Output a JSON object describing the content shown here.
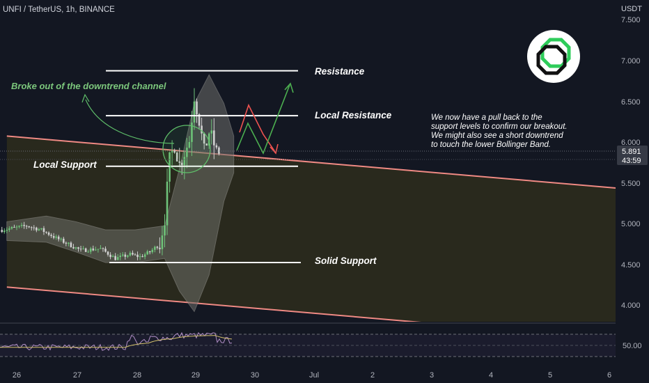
{
  "header": {
    "symbol": "UNFI / TetherUS, 1h, BINANCE"
  },
  "price_axis": {
    "currency": "USDT",
    "last_price": "5.891",
    "countdown": "43:59",
    "ticks": [
      "7.500",
      "7.000",
      "6.500",
      "6.000",
      "5.500",
      "5.000",
      "4.500",
      "4.000"
    ]
  },
  "indicator": {
    "level_label": "50.00"
  },
  "time_axis": {
    "ticks": [
      "26",
      "27",
      "28",
      "29",
      "30",
      "Jul",
      "2",
      "3",
      "4",
      "5",
      "6"
    ]
  },
  "annotations": {
    "breakout": "Broke out of the downtrend channel",
    "resistance": "Resistance",
    "local_resistance": "Local Resistance",
    "local_support": "Local Support",
    "solid_support": "Solid Support",
    "note_lines": [
      "We now have a pull back to the",
      "support levels to confirm our breakout.",
      "We might also see a short downtrend",
      "to touch the lower Bollinger Band."
    ]
  },
  "colors": {
    "background": "#131722",
    "up": "#6fc37a",
    "down": "#d0d0d0",
    "channel_line": "#f08a84",
    "channel_fill": "#2c2b1d",
    "band_fill": "#6d6e69",
    "breakout_text": "#7cc77c",
    "scenario_up": "#4caf50",
    "scenario_down": "#ef5350",
    "rsi_line": "#b18ec6",
    "rsi_ma": "#d4c26c"
  },
  "chart_data": {
    "type": "candlestick",
    "symbol": "UNFI / TetherUS",
    "interval": "1h",
    "exchange": "BINANCE",
    "y_unit": "USDT",
    "ylim": [
      3.85,
      7.6
    ],
    "x_range": [
      "2021-06-25T20:00",
      "2021-07-06T08:00"
    ],
    "last_price": 5.891,
    "levels": [
      {
        "name": "Resistance",
        "price": 6.9
      },
      {
        "name": "Local Resistance",
        "price": 6.35
      },
      {
        "name": "Local Support",
        "price": 5.73
      },
      {
        "name": "Solid Support",
        "price": 4.55
      }
    ],
    "channel": {
      "upper": [
        [
          "2021-06-25T20:00",
          6.1
        ],
        [
          "2021-07-06T08:00",
          5.45
        ]
      ],
      "lower": [
        [
          "2021-06-25T20:00",
          4.25
        ],
        [
          "2021-07-06T08:00",
          3.6
        ]
      ]
    },
    "bollinger_bands": {
      "time": [
        "2021-06-25T20:00",
        "2021-06-26T12:00",
        "2021-06-27T00:00",
        "2021-06-27T12:00",
        "2021-06-28T00:00",
        "2021-06-28T12:00",
        "2021-06-28T18:00",
        "2021-06-29T00:00",
        "2021-06-29T06:00",
        "2021-06-29T12:00",
        "2021-06-29T16:00"
      ],
      "upper": [
        5.05,
        5.12,
        5.05,
        4.95,
        4.95,
        5.0,
        5.7,
        6.5,
        6.85,
        6.5,
        6.1
      ],
      "lower": [
        4.82,
        4.8,
        4.68,
        4.55,
        4.55,
        4.6,
        4.2,
        3.95,
        4.4,
        5.3,
        5.65
      ]
    },
    "rsi": {
      "level": 50
    }
  }
}
